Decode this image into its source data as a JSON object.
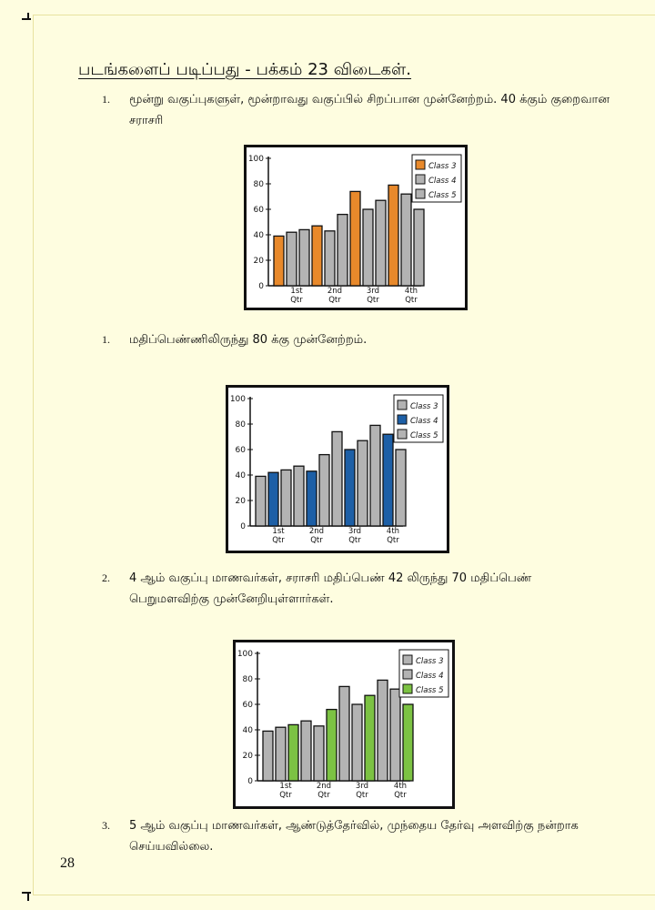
{
  "title": "படங்களைப் படிப்பது - பக்கம் 23 விடைகள்.",
  "items": [
    {
      "number": "1.",
      "text": "மூன்று வகுப்புகளுள், மூன்றாவது வகுப்பில் சிறப்பான முன்னேற்றம். 40 க்கும் குறைவான சராசரி"
    },
    {
      "number": "1.",
      "text": "மதிப்பெண்ணிலிருந்து 80 க்கு முன்னேற்றம்."
    },
    {
      "number": "2.",
      "text": "4 ஆம் வகுப்பு மாணவர்கள், சராசரி மதிப்பெண் 42 லிருந்து 70 மதிப்பெண் பெறுமளவிற்கு முன்னேறியுள்ளார்கள்."
    },
    {
      "number": "3.",
      "text": "5 ஆம் வகுப்பு மாணவர்கள், ஆண்டுத்தேர்வில், முந்தைய தேர்வு அளவிற்கு நன்றாக செய்யவில்லை."
    }
  ],
  "page_number": "28",
  "colors": {
    "orange": "#e8892b",
    "blue": "#1d5fa6",
    "green": "#7cc243",
    "gray": "#b3b3b3"
  },
  "chart_data": [
    {
      "type": "bar",
      "categories": [
        "1st Qtr",
        "2nd Qtr",
        "3rd Qtr",
        "4th Qtr"
      ],
      "series": [
        {
          "name": "Class 3",
          "values": [
            39,
            47,
            74,
            79
          ],
          "color": "#e8892b"
        },
        {
          "name": "Class 4",
          "values": [
            42,
            43,
            60,
            72
          ],
          "color": "#b3b3b3"
        },
        {
          "name": "Class 5",
          "values": [
            44,
            56,
            67,
            60
          ],
          "color": "#b3b3b3"
        }
      ],
      "yticks": [
        "0",
        "20",
        "40",
        "60",
        "80",
        "100"
      ],
      "ylim": [
        0,
        100
      ],
      "legend": "top-right"
    },
    {
      "type": "bar",
      "categories": [
        "1st Qtr",
        "2nd Qtr",
        "3rd Qtr",
        "4th Qtr"
      ],
      "series": [
        {
          "name": "Class 3",
          "values": [
            39,
            47,
            74,
            79
          ],
          "color": "#b3b3b3"
        },
        {
          "name": "Class 4",
          "values": [
            42,
            43,
            60,
            72
          ],
          "color": "#1d5fa6"
        },
        {
          "name": "Class 5",
          "values": [
            44,
            56,
            67,
            60
          ],
          "color": "#b3b3b3"
        }
      ],
      "yticks": [
        "0",
        "20",
        "40",
        "60",
        "80",
        "100"
      ],
      "ylim": [
        0,
        100
      ],
      "legend": "top-right"
    },
    {
      "type": "bar",
      "categories": [
        "1st Qtr",
        "2nd Qtr",
        "3rd Qtr",
        "4th Qtr"
      ],
      "series": [
        {
          "name": "Class 3",
          "values": [
            39,
            47,
            74,
            79
          ],
          "color": "#b3b3b3"
        },
        {
          "name": "Class 4",
          "values": [
            42,
            43,
            60,
            72
          ],
          "color": "#b3b3b3"
        },
        {
          "name": "Class 5",
          "values": [
            44,
            56,
            67,
            60
          ],
          "color": "#7cc243"
        }
      ],
      "yticks": [
        "0",
        "20",
        "40",
        "60",
        "80",
        "100"
      ],
      "ylim": [
        0,
        100
      ],
      "legend": "top-right"
    }
  ]
}
